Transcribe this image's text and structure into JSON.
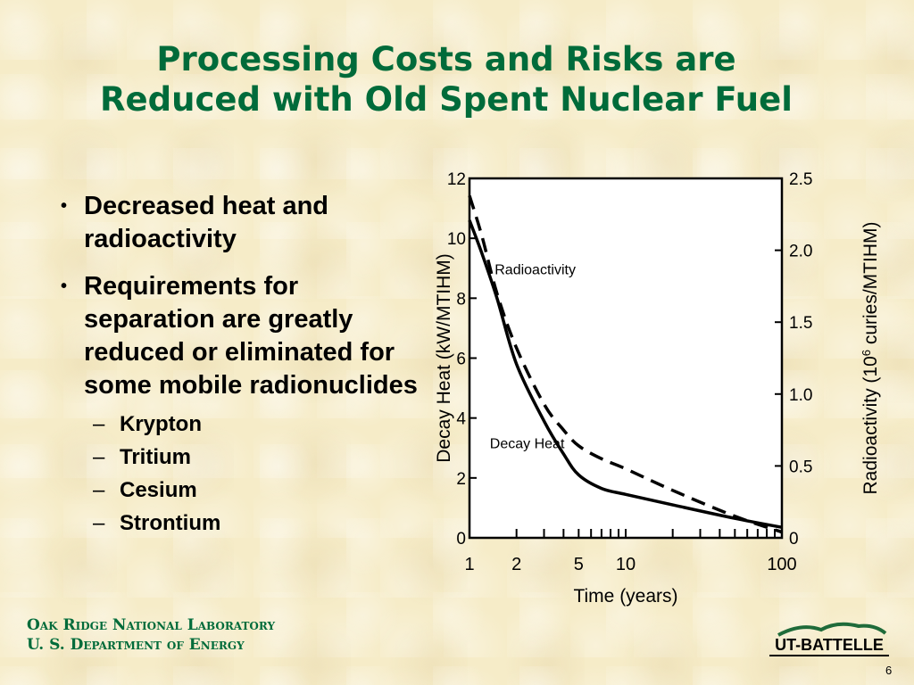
{
  "slide": {
    "title_line1": "Processing Costs and Risks are",
    "title_line2": "Reduced with Old Spent Nuclear Fuel",
    "page_number": "6"
  },
  "bullets": [
    {
      "text": "Decreased heat and radioactivity"
    },
    {
      "text": "Requirements for separation are greatly reduced or eliminated for some mobile radionuclides",
      "sub_items": [
        "Krypton",
        "Tritium",
        "Cesium",
        "Strontium"
      ]
    }
  ],
  "footer": {
    "org_line1": "Oak Ridge National Laboratory",
    "org_line2": "U. S. Department of Energy",
    "logo_text": "UT-BATTELLE"
  },
  "colors": {
    "title": "#006b3a",
    "background": "#f6ecc8"
  },
  "chart_data": {
    "type": "line",
    "xlabel": "Time (years)",
    "x_scale": "log",
    "xlim": [
      1,
      100
    ],
    "x_tick_labels": [
      "1",
      "2",
      "5",
      "10",
      "100"
    ],
    "ylabel_left": "Decay Heat (kW/MTIHM)",
    "ylim_left": [
      0,
      12
    ],
    "y_ticks_left": [
      "0",
      "2",
      "4",
      "6",
      "8",
      "10",
      "12"
    ],
    "ylabel_right_main": "Radioactivity (10",
    "ylabel_right_sup": "6",
    "ylabel_right_end": " curies/MTIHM)",
    "ylim_right": [
      0,
      2.5
    ],
    "y_ticks_right": [
      "0",
      "0.5",
      "1.0",
      "1.5",
      "2.0",
      "2.5"
    ],
    "series": [
      {
        "name": "Decay Heat",
        "axis": "left",
        "style": "solid",
        "x": [
          1,
          1.2,
          1.5,
          2,
          3,
          4,
          5,
          7,
          10,
          20,
          50,
          100
        ],
        "y": [
          10.6,
          9.5,
          8.0,
          5.8,
          3.9,
          2.8,
          2.1,
          1.65,
          1.45,
          1.1,
          0.65,
          0.35
        ]
      },
      {
        "name": "Radioactivity",
        "axis": "right",
        "style": "dashed",
        "x": [
          1,
          1.2,
          1.5,
          2,
          3,
          4,
          5,
          7,
          10,
          20,
          50,
          100
        ],
        "y": [
          2.38,
          2.1,
          1.7,
          1.32,
          0.93,
          0.75,
          0.64,
          0.55,
          0.48,
          0.33,
          0.15,
          0.04
        ]
      }
    ],
    "annotations": [
      "Radioactivity",
      "Decay Heat"
    ]
  }
}
